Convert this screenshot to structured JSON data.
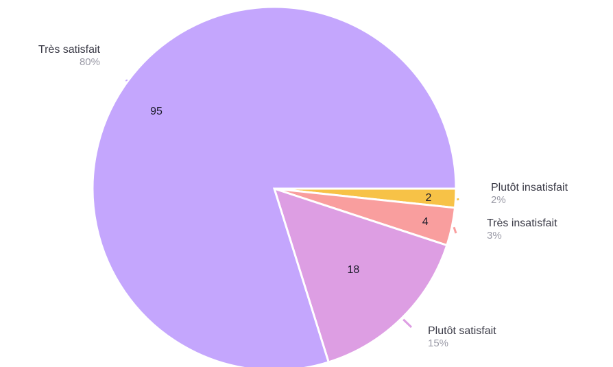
{
  "chart_data": {
    "type": "pie",
    "title": "",
    "slices": [
      {
        "label": "Plutôt insatisfait",
        "value": 2,
        "percent_label": "2%",
        "color": "#f7c247"
      },
      {
        "label": "Très insatisfait",
        "value": 4,
        "percent_label": "3%",
        "color": "#f99e9e"
      },
      {
        "label": "Plutôt satisfait",
        "value": 18,
        "percent_label": "15%",
        "color": "#dd9ee3"
      },
      {
        "label": "Très satisfait",
        "value": 95,
        "percent_label": "80%",
        "color": "#c4a6fd"
      }
    ],
    "legend": "none",
    "data_labels": "inside values, outside name and percent"
  }
}
